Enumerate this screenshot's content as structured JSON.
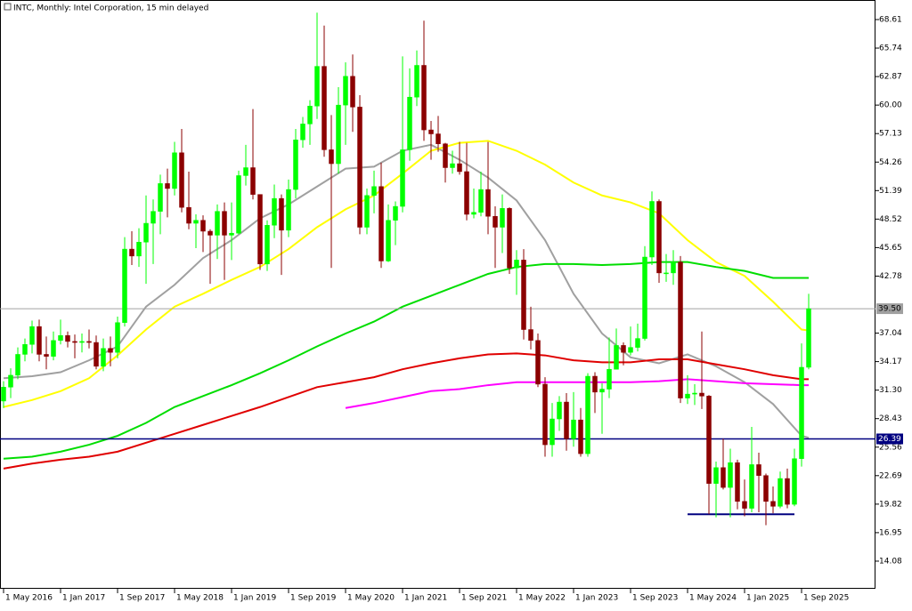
{
  "chart_data": {
    "type": "candlestick",
    "title": "INTC, Monthly:  Intel Corporation, 15 min delayed",
    "categories": [
      "1 May 2016",
      null,
      null,
      null,
      null,
      null,
      null,
      null,
      "1 Jan 2017",
      null,
      null,
      null,
      null,
      null,
      null,
      null,
      "1 Sep 2017",
      null,
      null,
      null,
      null,
      null,
      null,
      null,
      "1 May 2018",
      null,
      null,
      null,
      null,
      null,
      null,
      null,
      "1 Jan 2019",
      null,
      null,
      null,
      null,
      null,
      null,
      null,
      "1 Sep 2019",
      null,
      null,
      null,
      null,
      null,
      null,
      null,
      "1 May 2020",
      null,
      null,
      null,
      null,
      null,
      null,
      null,
      "1 Jan 2021",
      null,
      null,
      null,
      null,
      null,
      null,
      null,
      "1 Sep 2021",
      null,
      null,
      null,
      null,
      null,
      null,
      null,
      "1 May 2022",
      null,
      null,
      null,
      null,
      null,
      null,
      null,
      "1 Jan 2023",
      null,
      null,
      null,
      null,
      null,
      null,
      null,
      "1 Sep 2023",
      null,
      null,
      null,
      null,
      null,
      null,
      null,
      "1 May 2024",
      null,
      null,
      null,
      null,
      null,
      null,
      null,
      "1 Jan 2025",
      null,
      null,
      null,
      null,
      null,
      null,
      null,
      "1 Sep 2025",
      null
    ],
    "open": [
      30.2,
      31.6,
      32.8,
      34.9,
      35.9,
      37.7,
      34.9,
      34.7,
      36.3,
      36.8,
      36.2,
      36.1,
      36.2,
      36.1,
      33.7,
      35.5,
      35.1,
      38.1,
      45.5,
      44.8,
      46.2,
      48.1,
      49.3,
      52.1,
      51.6,
      55.2,
      49.7,
      48.1,
      48.4,
      47.3,
      46.9,
      49.3,
      46.9,
      47.1,
      52.9,
      53.7,
      51.0,
      44.0,
      47.9,
      50.6,
      47.4,
      51.5,
      56.5,
      58.1,
      59.9,
      63.9,
      55.5,
      54.1,
      60.0,
      62.9,
      59.8,
      47.7,
      50.9,
      51.8,
      44.3,
      48.4,
      49.8,
      55.5,
      60.8,
      64.0,
      57.5,
      57.1,
      56.1,
      53.7,
      54.1,
      53.3,
      49.0,
      49.2,
      51.5,
      48.8,
      47.7,
      49.6,
      43.6,
      44.4,
      37.4,
      36.3,
      31.9,
      25.8,
      28.4,
      30.1,
      26.4,
      28.3,
      24.9,
      32.7,
      31.1,
      31.4,
      33.4,
      35.8,
      35.1,
      35.6,
      36.5,
      44.7,
      50.3,
      43.1,
      43.1,
      44.2,
      30.5,
      30.9,
      31.0,
      30.7,
      21.9,
      23.5,
      21.5,
      24.0,
      20.1,
      19.4,
      23.8,
      22.7,
      20.1,
      19.6,
      22.4,
      19.8,
      24.4,
      33.6
    ],
    "high": [
      32.2,
      33.5,
      35.6,
      36.5,
      38.3,
      38.4,
      36.7,
      37.2,
      38.4,
      37.2,
      36.9,
      37.0,
      37.4,
      36.8,
      36.5,
      36.7,
      38.7,
      46.7,
      47.3,
      47.6,
      50.9,
      50.5,
      53.0,
      53.6,
      56.3,
      57.6,
      53.3,
      49.0,
      48.9,
      47.5,
      50.0,
      50.2,
      50.2,
      53.4,
      56.0,
      59.6,
      51.0,
      48.4,
      52.0,
      51.0,
      52.5,
      57.6,
      58.8,
      60.5,
      69.3,
      68.0,
      59.0,
      61.8,
      64.3,
      65.1,
      61.0,
      51.6,
      53.4,
      54.2,
      50.0,
      50.3,
      64.9,
      63.7,
      65.5,
      68.5,
      58.4,
      58.9,
      56.2,
      55.4,
      56.3,
      56.2,
      51.6,
      53.3,
      56.3,
      49.8,
      51.0,
      49.7,
      45.4,
      45.5,
      39.7,
      37.0,
      32.6,
      30.0,
      30.7,
      31.0,
      31.1,
      29.5,
      33.0,
      33.1,
      32.0,
      36.6,
      37.5,
      36.1,
      37.7,
      38.0,
      45.8,
      51.3,
      50.5,
      45.0,
      45.4,
      44.8,
      32.8,
      31.9,
      37.2,
      30.8,
      24.1,
      26.4,
      25.4,
      24.3,
      22.3,
      27.6,
      25.0,
      22.9,
      21.6,
      23.1,
      23.4,
      25.4,
      36.0,
      41.0
    ],
    "low": [
      29.5,
      30.5,
      32.4,
      34.2,
      35.0,
      34.2,
      33.4,
      34.3,
      35.9,
      35.6,
      34.5,
      35.1,
      35.5,
      33.4,
      33.2,
      33.7,
      34.5,
      37.7,
      43.9,
      43.7,
      42.0,
      44.0,
      47.0,
      48.7,
      50.9,
      49.2,
      47.5,
      45.6,
      45.2,
      42.0,
      44.5,
      42.4,
      44.4,
      47.0,
      51.9,
      50.5,
      43.4,
      43.3,
      46.6,
      42.9,
      46.7,
      50.6,
      55.7,
      56.0,
      58.6,
      54.8,
      43.6,
      53.1,
      56.0,
      57.3,
      47.0,
      47.0,
      49.1,
      43.6,
      44.2,
      45.9,
      49.2,
      54.4,
      59.9,
      56.4,
      54.5,
      55.3,
      52.2,
      53.1,
      53.0,
      48.4,
      48.6,
      48.8,
      47.0,
      43.6,
      45.1,
      43.0,
      40.9,
      36.4,
      35.4,
      31.6,
      24.6,
      24.6,
      27.2,
      25.2,
      25.6,
      24.6,
      24.6,
      29.0,
      26.9,
      30.5,
      33.4,
      33.8,
      34.8,
      35.2,
      36.3,
      43.9,
      42.1,
      42.2,
      41.9,
      30.0,
      29.9,
      29.8,
      29.4,
      18.8,
      18.5,
      21.3,
      18.5,
      19.3,
      18.6,
      19.0,
      19.0,
      17.7,
      18.9,
      19.4,
      19.4,
      19.6,
      23.6,
      33.4
    ],
    "close": [
      31.6,
      32.8,
      34.9,
      35.9,
      37.7,
      34.9,
      34.7,
      36.3,
      36.8,
      36.2,
      36.1,
      36.2,
      36.1,
      33.7,
      35.5,
      35.1,
      38.1,
      45.5,
      44.8,
      46.2,
      48.1,
      49.3,
      52.1,
      51.6,
      55.2,
      49.7,
      48.1,
      48.4,
      47.3,
      46.9,
      49.3,
      46.9,
      47.1,
      52.9,
      53.7,
      51.0,
      44.0,
      47.9,
      50.6,
      47.4,
      51.5,
      56.5,
      58.1,
      59.9,
      63.9,
      55.5,
      54.1,
      60.0,
      62.9,
      59.8,
      47.7,
      50.9,
      51.8,
      44.3,
      48.4,
      49.8,
      55.5,
      60.8,
      64.0,
      57.5,
      57.1,
      56.1,
      53.7,
      54.1,
      53.3,
      49.0,
      49.2,
      51.5,
      48.8,
      47.7,
      49.6,
      43.6,
      44.4,
      37.4,
      36.3,
      31.9,
      25.8,
      28.4,
      30.1,
      26.4,
      28.3,
      24.9,
      32.7,
      31.1,
      31.4,
      33.4,
      35.8,
      35.1,
      35.6,
      36.5,
      44.7,
      50.3,
      43.1,
      43.1,
      44.2,
      30.5,
      30.9,
      31.0,
      30.7,
      21.9,
      23.5,
      21.5,
      24.0,
      20.1,
      19.4,
      23.8,
      22.7,
      20.1,
      19.6,
      22.4,
      19.8,
      24.4,
      33.6,
      39.5
    ],
    "up_color": "#00ff00",
    "down_color": "#8b0000",
    "ylim": [
      11.3,
      70.58
    ],
    "yticks": [
      68.61,
      65.74,
      62.87,
      {
        "value": 60,
        "label": "60.00"
      },
      57.13,
      54.26,
      51.39,
      48.52,
      45.65,
      42.78,
      37.04,
      34.17,
      {
        "value": 31.3,
        "label": "31.30"
      },
      28.43,
      25.56,
      22.69,
      19.82,
      16.95,
      14.08
    ],
    "overlays": {
      "x": [
        "1 May 2016",
        "1 Sep 2016",
        "1 Jan 2017",
        "1 May 2017",
        "1 Sep 2017",
        "1 Jan 2018",
        "1 May 2018",
        "1 Sep 2018",
        "1 Jan 2019",
        "1 May 2019",
        "1 Sep 2019",
        "1 Jan 2020",
        "1 May 2020",
        "1 Sep 2020",
        "1 Jan 2021",
        "1 May 2021",
        "1 Sep 2021",
        "1 Jan 2022",
        "1 May 2022",
        "1 Sep 2022",
        "1 Jan 2023",
        "1 May 2023",
        "1 Sep 2023",
        "1 Jan 2024",
        "1 May 2024",
        "1 Sep 2024",
        "1 Jan 2025",
        "1 May 2025",
        "1 Sep 2025",
        "1 Oct 2025"
      ],
      "series": [
        {
          "color": "#a0a0a0",
          "values": [
            32.5,
            32.7,
            33.1,
            34.3,
            35.7,
            39.7,
            41.9,
            44.6,
            46.4,
            48.6,
            50.0,
            51.8,
            53.6,
            53.8,
            55.4,
            56.0,
            54.5,
            52.7,
            50.4,
            46.4,
            41.0,
            37.0,
            34.6,
            34.0,
            34.9,
            33.7,
            32.1,
            29.9,
            26.7,
            26.5
          ]
        },
        {
          "color": "#ffff00",
          "values": [
            29.6,
            30.3,
            31.2,
            32.5,
            34.8,
            37.4,
            39.7,
            41.0,
            42.4,
            43.7,
            45.5,
            47.7,
            49.5,
            50.9,
            53.1,
            55.4,
            56.2,
            56.4,
            55.4,
            54.0,
            52.2,
            50.9,
            50.2,
            49.1,
            46.4,
            44.2,
            42.8,
            40.2,
            37.4,
            37.3
          ]
        },
        {
          "color": "#00dd00",
          "values": [
            24.4,
            24.6,
            25.1,
            25.8,
            26.7,
            28.0,
            29.6,
            30.7,
            31.8,
            33.0,
            34.3,
            35.7,
            37.0,
            38.2,
            39.7,
            40.8,
            41.9,
            43.0,
            43.7,
            44.0,
            44.0,
            43.9,
            44.0,
            44.2,
            44.2,
            43.7,
            43.3,
            42.6,
            42.6,
            42.6
          ]
        },
        {
          "color": "#e00000",
          "values": [
            23.4,
            23.9,
            24.3,
            24.6,
            25.1,
            26.0,
            26.9,
            27.8,
            28.7,
            29.6,
            30.6,
            31.6,
            32.1,
            32.6,
            33.4,
            34.0,
            34.5,
            34.9,
            35.0,
            34.8,
            34.3,
            34.1,
            34.1,
            34.4,
            34.4,
            33.9,
            33.4,
            32.8,
            32.4,
            32.4
          ]
        },
        {
          "color": "#ff00ff",
          "values": [
            null,
            null,
            null,
            null,
            null,
            null,
            null,
            null,
            null,
            null,
            null,
            null,
            29.5,
            30.0,
            30.6,
            31.2,
            31.4,
            31.8,
            32.1,
            32.1,
            32.1,
            32.1,
            32.1,
            32.2,
            32.4,
            32.2,
            32.0,
            31.9,
            31.8,
            31.8
          ]
        }
      ]
    },
    "levels": [
      {
        "value": 39.5,
        "label": "39.50",
        "color": "#a0a0a0"
      },
      {
        "value": 26.39,
        "color": "#000080"
      }
    ],
    "support": {
      "x": [
        "1 May 2024",
        "1 Aug 2025"
      ],
      "value": 18.8,
      "color": "#000080"
    }
  }
}
